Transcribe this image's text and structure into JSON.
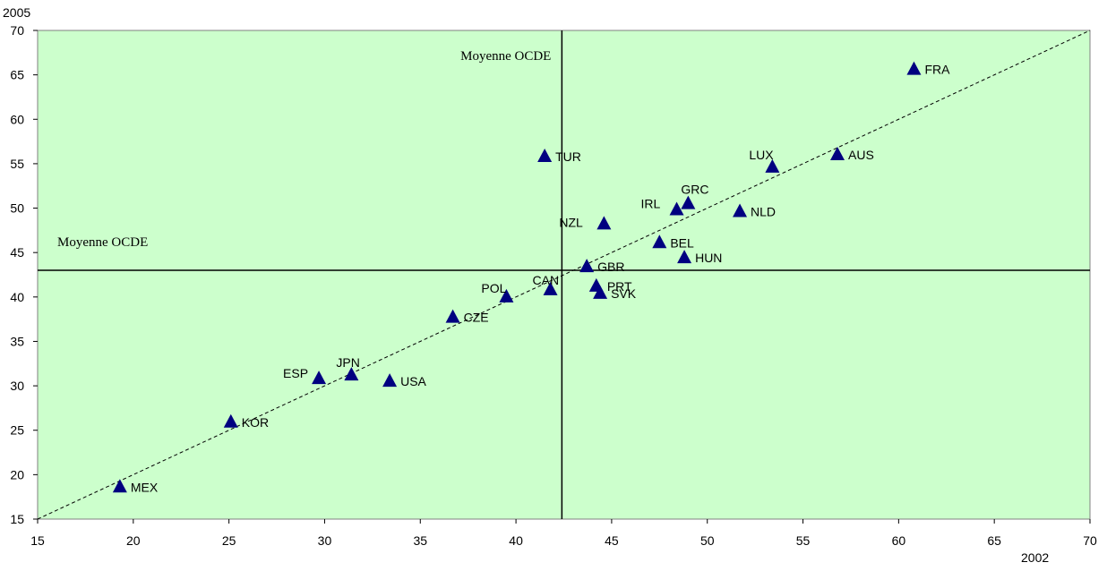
{
  "chart_data": {
    "type": "scatter",
    "xlabel": "2002",
    "ylabel": "2005",
    "xlim": [
      15,
      70
    ],
    "ylim": [
      15,
      70
    ],
    "x_ticks": [
      15,
      20,
      25,
      30,
      35,
      40,
      45,
      50,
      55,
      60,
      65,
      70
    ],
    "y_ticks": [
      15,
      20,
      25,
      30,
      35,
      40,
      45,
      50,
      55,
      60,
      65,
      70
    ],
    "plot_background": "#ccffcc",
    "marker_color": "#000080",
    "diagonal_line": {
      "from": [
        15,
        15
      ],
      "to": [
        70,
        70
      ],
      "style": "dashed"
    },
    "reference_lines": {
      "vertical": {
        "x": 42.4,
        "label": "Moyenne OCDE"
      },
      "horizontal": {
        "y": 43.0,
        "label": "Moyenne OCDE"
      }
    },
    "points": [
      {
        "label": "FRA",
        "x": 60.8,
        "y": 65.6
      },
      {
        "label": "AUS",
        "x": 56.8,
        "y": 56.0
      },
      {
        "label": "LUX",
        "x": 53.4,
        "y": 54.6
      },
      {
        "label": "TUR",
        "x": 41.5,
        "y": 55.8
      },
      {
        "label": "GRC",
        "x": 49.0,
        "y": 50.5
      },
      {
        "label": "IRL",
        "x": 48.4,
        "y": 49.8
      },
      {
        "label": "NLD",
        "x": 51.7,
        "y": 49.6
      },
      {
        "label": "NZL",
        "x": 44.6,
        "y": 48.2
      },
      {
        "label": "BEL",
        "x": 47.5,
        "y": 46.1
      },
      {
        "label": "HUN",
        "x": 48.8,
        "y": 44.4
      },
      {
        "label": "GBR",
        "x": 43.7,
        "y": 43.4
      },
      {
        "label": "CAN",
        "x": 41.8,
        "y": 40.8
      },
      {
        "label": "PRT",
        "x": 44.2,
        "y": 41.2
      },
      {
        "label": "SVK",
        "x": 44.4,
        "y": 40.4
      },
      {
        "label": "POL",
        "x": 39.5,
        "y": 40.0
      },
      {
        "label": "CZE",
        "x": 36.7,
        "y": 37.7
      },
      {
        "label": "JPN",
        "x": 31.4,
        "y": 31.2
      },
      {
        "label": "ESP",
        "x": 29.7,
        "y": 30.8
      },
      {
        "label": "USA",
        "x": 33.4,
        "y": 30.5
      },
      {
        "label": "KOR",
        "x": 25.1,
        "y": 25.9
      },
      {
        "label": "MEX",
        "x": 19.3,
        "y": 18.6
      }
    ]
  }
}
